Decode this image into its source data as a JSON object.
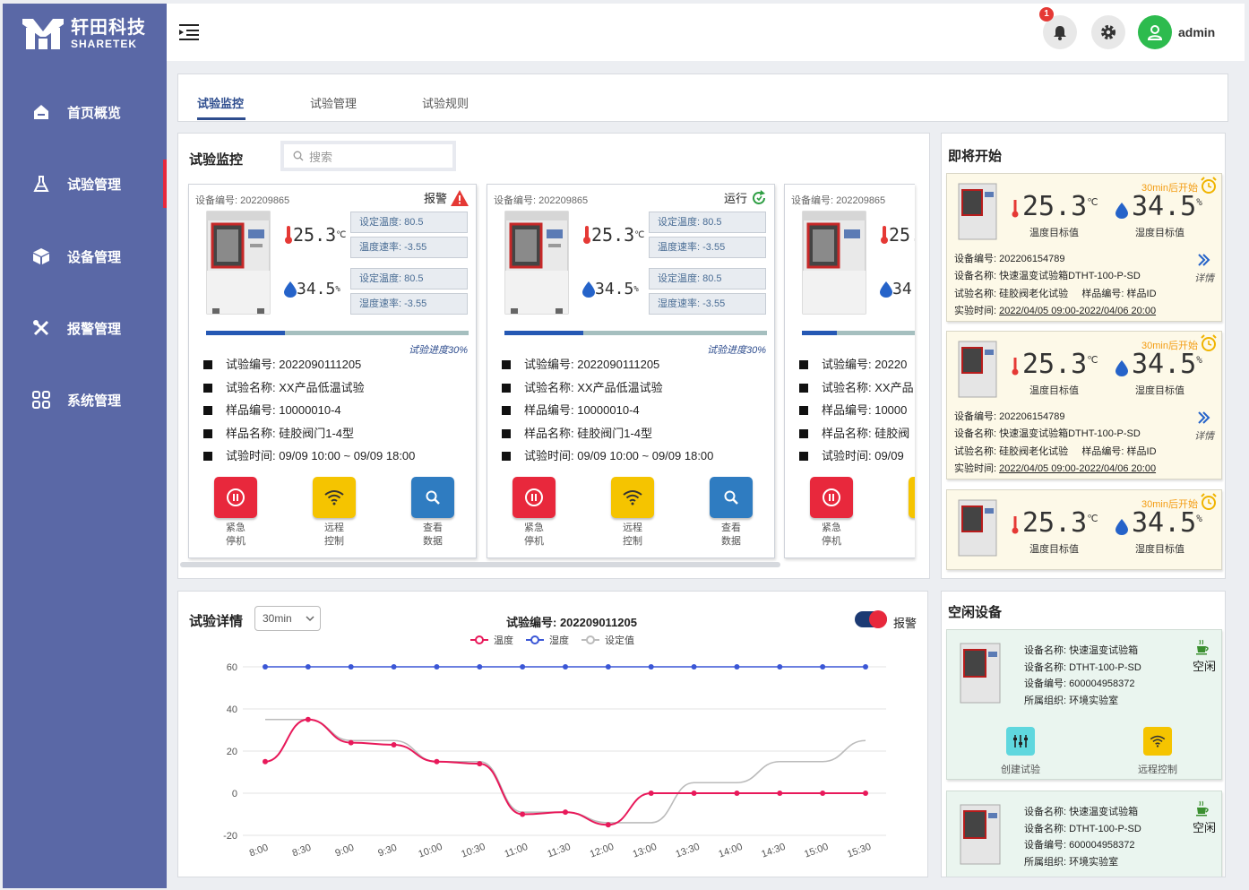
{
  "brand": {
    "cn": "轩田科技",
    "en": "SHARETEK"
  },
  "nav": [
    {
      "label": "首页概览",
      "icon": "home-icon"
    },
    {
      "label": "试验管理",
      "icon": "flask-icon",
      "active": true
    },
    {
      "label": "设备管理",
      "icon": "cube-icon"
    },
    {
      "label": "报警管理",
      "icon": "tools-icon"
    },
    {
      "label": "系统管理",
      "icon": "grid-icon"
    }
  ],
  "topbar": {
    "notif_count": "1",
    "username": "admin"
  },
  "tabs": [
    "试验监控",
    "试验管理",
    "试验规则"
  ],
  "monitor": {
    "title": "试验监控",
    "search_placeholder": "搜索",
    "cards": [
      {
        "devno": "设备编号: 202209865",
        "status": "报警",
        "temp": "25.3",
        "temp_unit": "℃",
        "hum": "34.5",
        "hum_unit": "%",
        "set_temp": "设定温度: 80.5",
        "temp_rate": "温度速率: -3.55",
        "set_temp2": "设定温度: 80.5",
        "temp_rate2": "湿度速率: -3.55",
        "progress": 0.3,
        "progress_label": "试验进度30%",
        "info": [
          "试验编号: 2022090111205",
          "试验名称: XX产品低温试验",
          "样品编号: 10000010-4",
          "样品名称: 硅胶阀门1-4型",
          "试验时间: 09/09 10:00 ~ 09/09 18:00"
        ]
      },
      {
        "devno": "设备编号: 202209865",
        "status": "运行",
        "temp": "25.3",
        "temp_unit": "℃",
        "hum": "34.5",
        "hum_unit": "%",
        "set_temp": "设定温度: 80.5",
        "temp_rate": "温度速率: -3.55",
        "set_temp2": "设定温度: 80.5",
        "temp_rate2": "湿度速率: -3.55",
        "progress": 0.3,
        "progress_label": "试验进度30%",
        "info": [
          "试验编号: 2022090111205",
          "试验名称: XX产品低温试验",
          "样品编号: 10000010-4",
          "样品名称: 硅胶阀门1-4型",
          "试验时间: 09/09 10:00 ~ 09/09 18:00"
        ]
      },
      {
        "devno": "设备编号: 202209865",
        "temp": "25.",
        "hum": "34.",
        "info": [
          "试验编号: 20220",
          "试验名称: XX产品",
          "样品编号: 10000",
          "样品名称: 硅胶阀",
          "试验时间: 09/09"
        ]
      }
    ],
    "actions": {
      "stop": "紧急停机",
      "stop_l1": "紧急",
      "stop_l2": "停机",
      "remote_l1": "远程",
      "remote_l2": "控制",
      "view_l1": "查看",
      "view_l2": "数据"
    }
  },
  "upcoming": {
    "title": "即将开始",
    "items": [
      {
        "when": "30min后开始",
        "temp": "25.3",
        "temp_unit": "℃",
        "hum": "34.5",
        "hum_unit": "%",
        "temp_lbl": "温度目标值",
        "hum_lbl": "湿度目标值",
        "devno": "设备编号: 202206154789",
        "devname": "设备名称: 快速温变试验箱DTHT-100-P-SD",
        "testname": "试验名称: 硅胶阀老化试验",
        "sampleid": "样品编号: 样品ID",
        "time_label": "实验时间:",
        "time": "2022/04/05 09:00-2022/04/06 20:00",
        "more": "详情"
      },
      {
        "when": "30min后开始",
        "temp": "25.3",
        "temp_unit": "℃",
        "hum": "34.5",
        "hum_unit": "%",
        "temp_lbl": "温度目标值",
        "hum_lbl": "湿度目标值",
        "devno": "设备编号: 202206154789",
        "devname": "设备名称: 快速温变试验箱DTHT-100-P-SD",
        "testname": "试验名称: 硅胶阀老化试验",
        "sampleid": "样品编号: 样品ID",
        "time_label": "实验时间:",
        "time": "2022/04/05 09:00-2022/04/06 20:00",
        "more": "详情"
      },
      {
        "when": "30min后开始",
        "temp": "25.3",
        "temp_unit": "℃",
        "hum": "34.5",
        "hum_unit": "%",
        "temp_lbl": "温度目标值",
        "hum_lbl": "湿度目标值"
      }
    ]
  },
  "details": {
    "title": "试验详情",
    "range": "30min",
    "test_no": "试验编号: 202209011205",
    "alarm_label": "报警"
  },
  "idle": {
    "title": "空闲设备",
    "items": [
      {
        "name": "设备名称: 快速温变试验箱",
        "model": "设备名称: DTHT-100-P-SD",
        "no": "设备编号: 600004958372",
        "org": "所属组织: 环境实验室",
        "state": "空闲",
        "create": "创建试验",
        "remote": "远程控制"
      },
      {
        "name": "设备名称: 快速温变试验箱",
        "model": "设备名称: DTHT-100-P-SD",
        "no": "设备编号: 600004958372",
        "org": "所属组织: 环境实验室",
        "state": "空闲"
      }
    ]
  },
  "colors": {
    "sidebar": "#5a68a6",
    "accent": "#2e4d8e",
    "temp": "#e8195a",
    "hum": "#3b57d6",
    "set": "#bbbbbb"
  },
  "chart_data": {
    "type": "line",
    "categories": [
      "8:00",
      "8:30",
      "9:00",
      "9:30",
      "10:00",
      "10:30",
      "11:00",
      "11:30",
      "12:00",
      "13:00",
      "13:30",
      "14:00",
      "14:30",
      "15:00",
      "15:30"
    ],
    "ylim": [
      -20,
      60
    ],
    "yticks": [
      60,
      40,
      20,
      0,
      -20
    ],
    "x": [
      0,
      0.5,
      1,
      1.5,
      2,
      2.5,
      3,
      3.5,
      4,
      4.5,
      5,
      5.5,
      6,
      6.5,
      7,
      7.5,
      8,
      8.5,
      9,
      9.5,
      10,
      10.5,
      11,
      11.5,
      12,
      12.5,
      13,
      13.5,
      14
    ],
    "series": [
      {
        "name": "温度",
        "color": "#e8195a",
        "values": [
          15,
          35,
          24,
          23,
          15,
          14,
          -10,
          -9,
          -15,
          0,
          0,
          0,
          0,
          0,
          0
        ]
      },
      {
        "name": "湿度",
        "color": "#3b57d6",
        "values": [
          60,
          60,
          60,
          60,
          60,
          60,
          60,
          60,
          60,
          60,
          60,
          60,
          60,
          60,
          60
        ]
      },
      {
        "name": "设定值",
        "color": "#bbbbbb",
        "values": [
          35,
          35,
          25,
          25,
          15,
          15,
          -9,
          -9,
          -14,
          -14,
          5,
          5,
          15,
          15,
          25
        ]
      }
    ]
  }
}
